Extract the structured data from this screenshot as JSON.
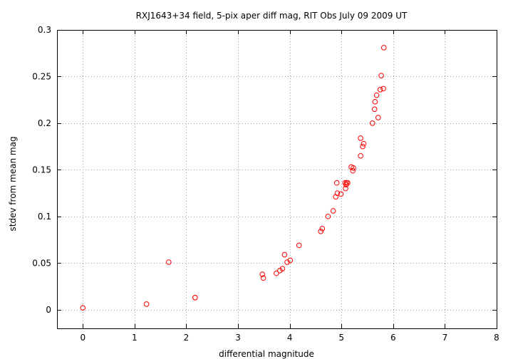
{
  "chart_data": {
    "type": "scatter",
    "title": "RXJ1643+34 field,  5-pix aper diff mag, RIT Obs July 09 2009 UT",
    "xlabel": "differential magnitude",
    "ylabel": "stdev from mean mag",
    "xlim": [
      -0.5,
      8
    ],
    "ylim": [
      -0.02,
      0.3
    ],
    "xticks": [
      "0",
      "1",
      "2",
      "3",
      "4",
      "5",
      "6",
      "7",
      "8"
    ],
    "yticks": [
      "0",
      "0.05",
      "0.1",
      "0.15",
      "0.2",
      "0.25",
      "0.3"
    ],
    "grid": true,
    "marker_color": "#ff0000",
    "series": [
      {
        "points": [
          [
            0.0,
            0.002
          ],
          [
            1.23,
            0.006
          ],
          [
            1.66,
            0.051
          ],
          [
            2.17,
            0.013
          ],
          [
            2.17,
            0.013
          ],
          [
            3.47,
            0.038
          ],
          [
            3.49,
            0.034
          ],
          [
            3.74,
            0.039
          ],
          [
            3.81,
            0.042
          ],
          [
            3.86,
            0.044
          ],
          [
            3.9,
            0.059
          ],
          [
            3.95,
            0.051
          ],
          [
            4.01,
            0.053
          ],
          [
            4.18,
            0.069
          ],
          [
            4.6,
            0.084
          ],
          [
            4.63,
            0.087
          ],
          [
            4.74,
            0.1
          ],
          [
            4.84,
            0.106
          ],
          [
            4.89,
            0.121
          ],
          [
            4.91,
            0.136
          ],
          [
            4.92,
            0.125
          ],
          [
            4.99,
            0.124
          ],
          [
            5.07,
            0.136
          ],
          [
            5.08,
            0.13
          ],
          [
            5.09,
            0.134
          ],
          [
            5.1,
            0.136
          ],
          [
            5.12,
            0.136
          ],
          [
            5.19,
            0.153
          ],
          [
            5.22,
            0.149
          ],
          [
            5.23,
            0.152
          ],
          [
            5.37,
            0.184
          ],
          [
            5.37,
            0.165
          ],
          [
            5.41,
            0.175
          ],
          [
            5.43,
            0.178
          ],
          [
            5.6,
            0.2
          ],
          [
            5.64,
            0.215
          ],
          [
            5.65,
            0.223
          ],
          [
            5.68,
            0.23
          ],
          [
            5.71,
            0.206
          ],
          [
            5.75,
            0.236
          ],
          [
            5.77,
            0.251
          ],
          [
            5.81,
            0.237
          ],
          [
            5.82,
            0.281
          ]
        ]
      }
    ]
  }
}
